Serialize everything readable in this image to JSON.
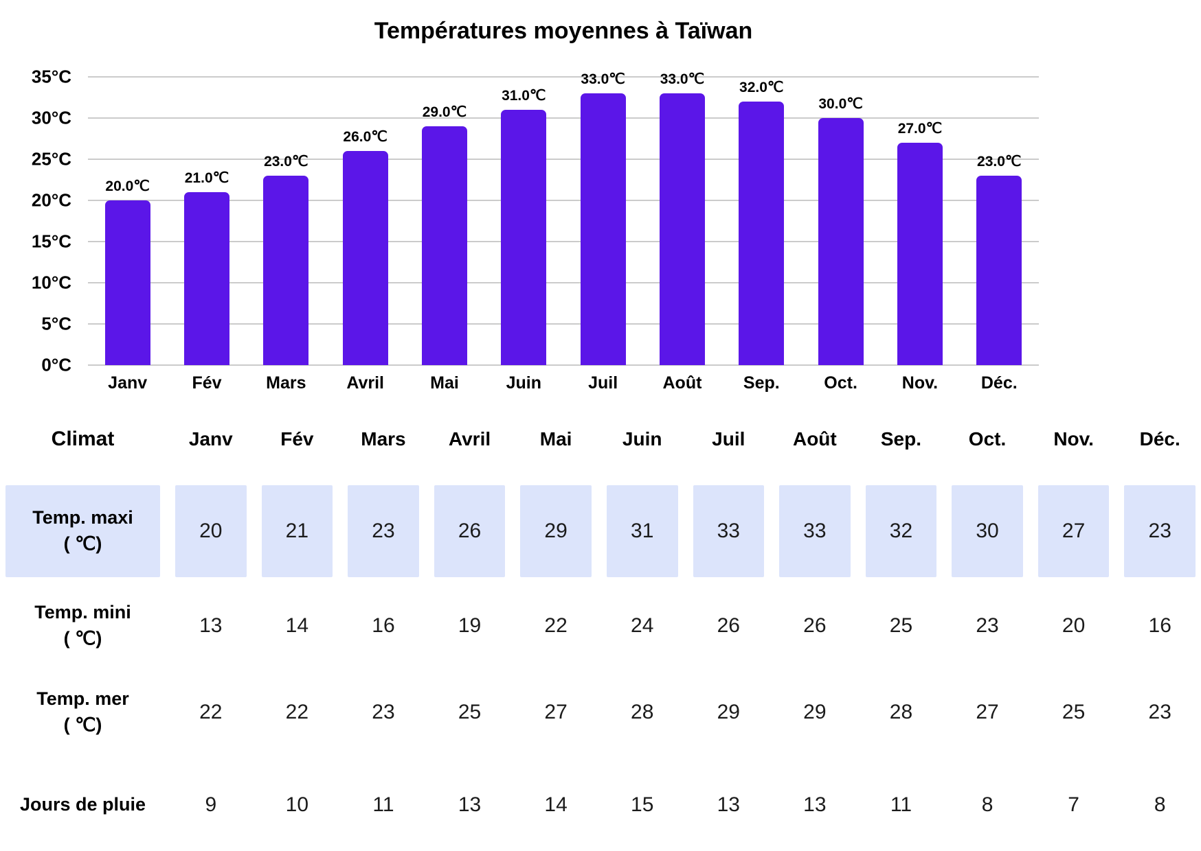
{
  "chart_data": {
    "type": "bar",
    "title": "Températures moyennes à Taïwan",
    "categories": [
      "Janv",
      "Fév",
      "Mars",
      "Avril",
      "Mai",
      "Juin",
      "Juil",
      "Août",
      "Sep.",
      "Oct.",
      "Nov.",
      "Déc."
    ],
    "values": [
      20,
      21,
      23,
      26,
      29,
      31,
      33,
      33,
      32,
      30,
      27,
      23
    ],
    "bar_labels": [
      "20.0℃",
      "21.0℃",
      "23.0℃",
      "26.0℃",
      "29.0℃",
      "31.0℃",
      "33.0℃",
      "33.0℃",
      "32.0℃",
      "30.0℃",
      "27.0℃",
      "23.0℃"
    ],
    "xlabel": "",
    "ylabel": "",
    "ylim": [
      0,
      35
    ],
    "y_ticks": [
      "35°C",
      "30°C",
      "25°C",
      "20°C",
      "15°C",
      "10°C",
      "5°C",
      "0°C"
    ],
    "grid": true,
    "legend": "none",
    "bar_color": "#5b16e8",
    "gridline_color": "#cbcbcb"
  },
  "table": {
    "header_label": "Climat",
    "columns": [
      "Janv",
      "Fév",
      "Mars",
      "Avril",
      "Mai",
      "Juin",
      "Juil",
      "Août",
      "Sep.",
      "Oct.",
      "Nov.",
      "Déc."
    ],
    "highlight_color": "#dce4fb",
    "rows": [
      {
        "label_line1": "Temp. maxi",
        "label_line2": "( ℃)",
        "highlighted": true,
        "values": [
          20,
          21,
          23,
          26,
          29,
          31,
          33,
          33,
          32,
          30,
          27,
          23
        ]
      },
      {
        "label_line1": "Temp. mini",
        "label_line2": "( ℃)",
        "highlighted": false,
        "values": [
          13,
          14,
          16,
          19,
          22,
          24,
          26,
          26,
          25,
          23,
          20,
          16
        ]
      },
      {
        "label_line1": "Temp. mer",
        "label_line2": "( ℃)",
        "highlighted": false,
        "values": [
          22,
          22,
          23,
          25,
          27,
          28,
          29,
          29,
          28,
          27,
          25,
          23
        ]
      },
      {
        "label_line1": "Jours de pluie",
        "label_line2": "",
        "highlighted": false,
        "values": [
          9,
          10,
          11,
          13,
          14,
          15,
          13,
          13,
          11,
          8,
          7,
          8
        ]
      }
    ]
  }
}
